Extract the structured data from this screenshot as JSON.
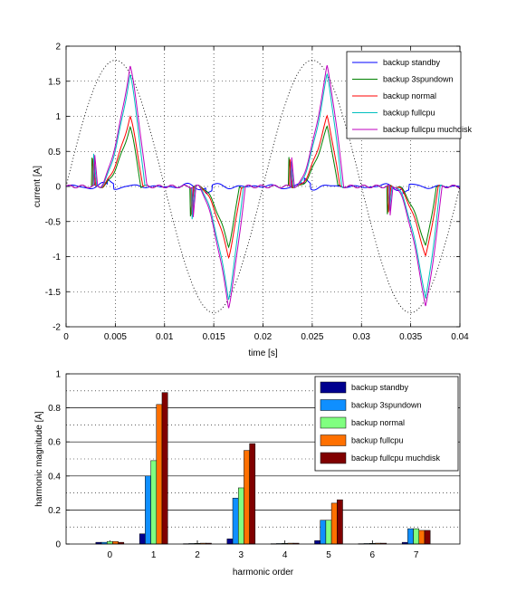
{
  "chart_data": [
    {
      "type": "line",
      "xlabel": "time [s]",
      "ylabel": "current [A]",
      "xlim": [
        0,
        0.04
      ],
      "ylim": [
        -2,
        2
      ],
      "xticks": [
        "0",
        "0.005",
        "0.01",
        "0.015",
        "0.02",
        "0.025",
        "0.03",
        "0.035",
        "0.04"
      ],
      "yticks": [
        "-2",
        "-1.5",
        "-1",
        "-0.5",
        "0",
        "0.5",
        "1",
        "1.5",
        "2"
      ],
      "grid": true,
      "legend_position": "top-right",
      "reference_curve": {
        "style": "dotted",
        "color": "#000000",
        "peak": 1.8,
        "period_s": 0.02
      },
      "series": [
        {
          "name": "backup standby",
          "color": "#0000ff",
          "peak": 0.08
        },
        {
          "name": "backup 3spundown",
          "color": "#008000",
          "peak": 0.85
        },
        {
          "name": "backup normal",
          "color": "#ff0000",
          "peak": 1.0
        },
        {
          "name": "backup fullcpu",
          "color": "#00bfbf",
          "peak": 1.6
        },
        {
          "name": "backup fullcpu muchdisk",
          "color": "#bf00bf",
          "peak": 1.72
        }
      ]
    },
    {
      "type": "bar",
      "xlabel": "harmonic order",
      "ylabel": "harmonic magnitude [A]",
      "ylim": [
        0,
        1
      ],
      "yticks": [
        "0",
        "0.2",
        "0.4",
        "0.6",
        "0.8",
        "1"
      ],
      "categories": [
        "0",
        "1",
        "2",
        "3",
        "4",
        "5",
        "6",
        "7"
      ],
      "grid": true,
      "legend_position": "top-right",
      "series": [
        {
          "name": "backup standby",
          "color": "#00008f",
          "values": [
            0.01,
            0.06,
            0.002,
            0.03,
            0.002,
            0.02,
            0.002,
            0.01
          ]
        },
        {
          "name": "backup 3spundown",
          "color": "#0f8fff",
          "values": [
            0.01,
            0.4,
            0.003,
            0.27,
            0.003,
            0.14,
            0.003,
            0.09
          ]
        },
        {
          "name": "backup normal",
          "color": "#80ff80",
          "values": [
            0.015,
            0.49,
            0.004,
            0.33,
            0.004,
            0.14,
            0.004,
            0.09
          ]
        },
        {
          "name": "backup fullcpu",
          "color": "#ff7000",
          "values": [
            0.015,
            0.82,
            0.005,
            0.55,
            0.005,
            0.24,
            0.005,
            0.08
          ]
        },
        {
          "name": "backup fullcpu muchdisk",
          "color": "#800000",
          "values": [
            0.01,
            0.89,
            0.005,
            0.59,
            0.005,
            0.26,
            0.005,
            0.08
          ]
        }
      ]
    }
  ]
}
